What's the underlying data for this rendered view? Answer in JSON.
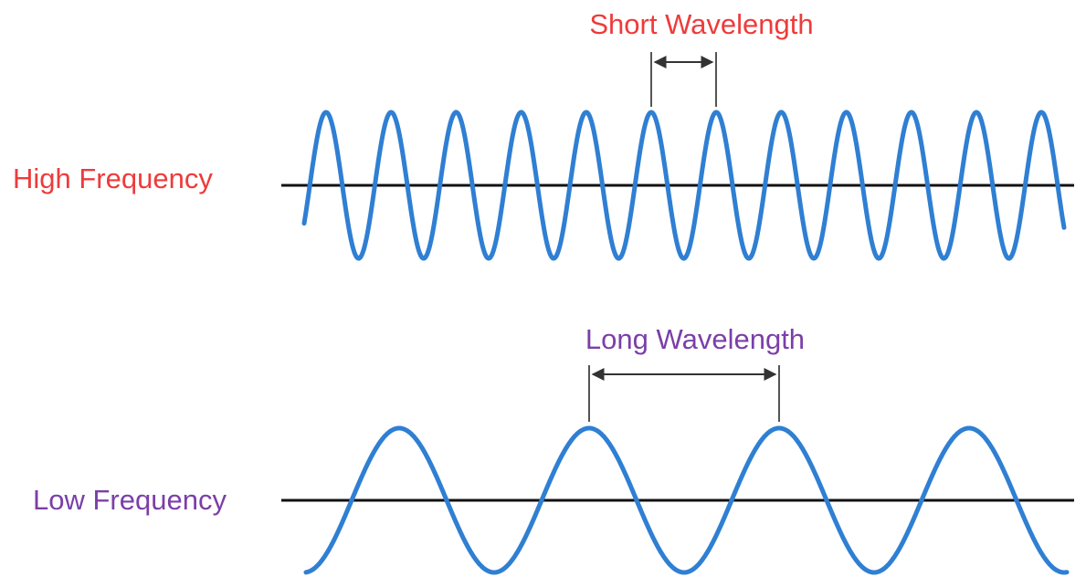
{
  "high": {
    "label": "High Frequency",
    "label_color": "#ee3b3b",
    "wavelength_label": "Short Wavelength",
    "cycles_shown": 11
  },
  "low": {
    "label": "Low Frequency",
    "label_color": "#7b3fa8",
    "wavelength_label": "Long Wavelength",
    "cycles_shown": 4
  },
  "colors": {
    "wave": "#2f7fd3",
    "axis": "#111111",
    "marker": "#555555"
  }
}
